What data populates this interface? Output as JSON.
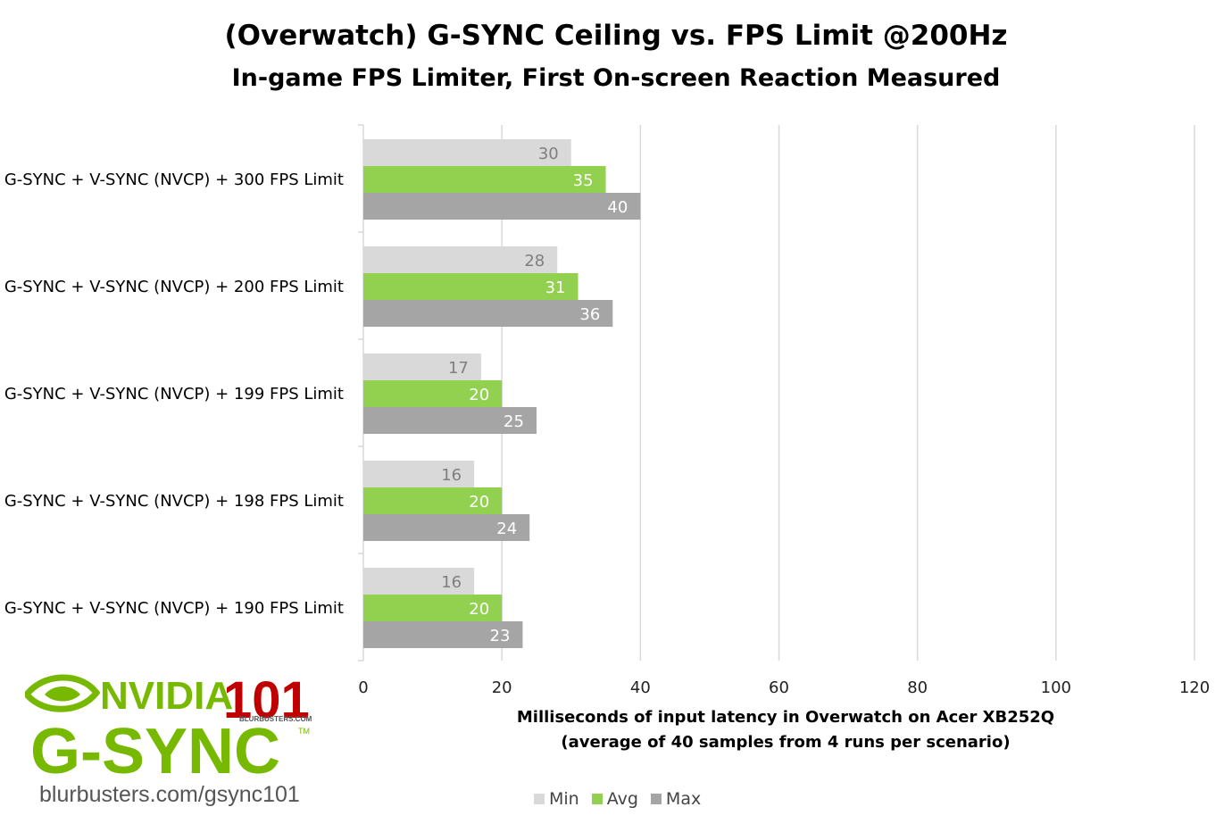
{
  "chart_data": {
    "type": "bar",
    "orientation": "horizontal",
    "title": "(Overwatch) G-SYNC Ceiling vs. FPS Limit @200Hz",
    "subtitle": "In-game FPS Limiter, First On-screen Reaction Measured",
    "xlabel_line1": "Milliseconds of input latency in Overwatch on Acer XB252Q",
    "xlabel_line2": "(average of 40 samples from 4 runs per scenario)",
    "ylabel": "",
    "xlim": [
      0,
      120
    ],
    "xticks": [
      0,
      20,
      40,
      60,
      80,
      100,
      120
    ],
    "grid": true,
    "legend_position": "bottom",
    "categories": [
      "G-SYNC + V-SYNC (NVCP) + 300 FPS Limit",
      "G-SYNC + V-SYNC (NVCP) + 200 FPS Limit",
      "G-SYNC + V-SYNC (NVCP) + 199 FPS Limit",
      "G-SYNC + V-SYNC (NVCP) + 198 FPS Limit",
      "G-SYNC + V-SYNC (NVCP) + 190 FPS Limit"
    ],
    "series": [
      {
        "name": "Min",
        "color": "#d9d9d9",
        "label_color": "#7f7f7f",
        "values": [
          30,
          28,
          17,
          16,
          16
        ]
      },
      {
        "name": "Avg",
        "color": "#92d050",
        "label_color": "#ffffff",
        "values": [
          35,
          31,
          20,
          20,
          20
        ]
      },
      {
        "name": "Max",
        "color": "#a5a5a5",
        "label_color": "#ffffff",
        "values": [
          40,
          36,
          25,
          24,
          23
        ]
      }
    ]
  },
  "logo": {
    "brand": "NVIDIA",
    "product": "G-SYNC",
    "badge": "101",
    "badge_sub": "BLURBUSTERS.COM",
    "tm": "TM",
    "url": "blurbusters.com/gsync101",
    "brand_color": "#76b900",
    "badge_color": "#c00000"
  }
}
